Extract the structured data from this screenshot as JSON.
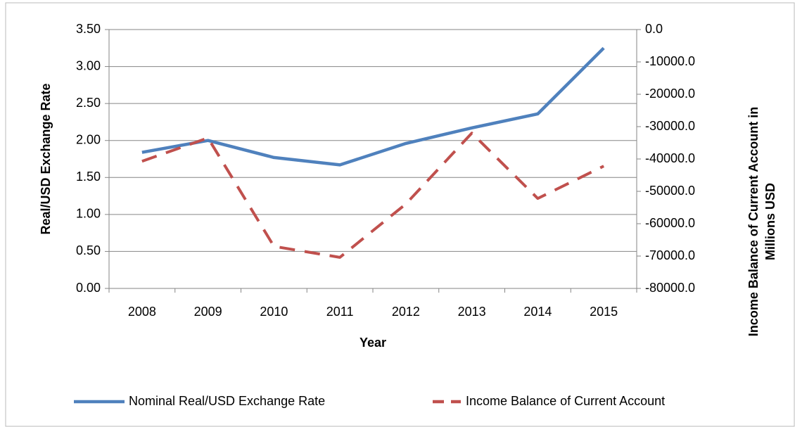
{
  "chart_data": {
    "type": "line",
    "x_label": "Year",
    "y_label": "Real/USD Exchange Rate",
    "y2_label": [
      "Income Balance of Current Account in",
      "Millions USD"
    ],
    "categories": [
      "2008",
      "2009",
      "2010",
      "2011",
      "2012",
      "2013",
      "2014",
      "2015"
    ],
    "series": [
      {
        "name": "Nominal Real/USD Exchange Rate",
        "color": "#4f81bd",
        "dash": false,
        "values": [
          1.84,
          2.0,
          1.77,
          1.67,
          1.96,
          2.17,
          2.36,
          3.25
        ]
      },
      {
        "name": "Income Balance of Current Account",
        "color": "#c0504d",
        "dash": true,
        "axis": "y2",
        "values": [
          -40700,
          -33500,
          -67000,
          -70400,
          -53900,
          -32000,
          -52200,
          -42200
        ]
      }
    ],
    "ylim": [
      0,
      3.5
    ],
    "yticks": [
      {
        "value": 0,
        "label": "0.00"
      },
      {
        "value": 0.5,
        "label": "0.50"
      },
      {
        "value": 1,
        "label": "1.00"
      },
      {
        "value": 1.5,
        "label": "1.50"
      },
      {
        "value": 2,
        "label": "2.00"
      },
      {
        "value": 2.5,
        "label": "2.50"
      },
      {
        "value": 3,
        "label": "3.00"
      },
      {
        "value": 3.5,
        "label": "3.50"
      }
    ],
    "y2lim": [
      -80000,
      0
    ],
    "y2ticks": [
      {
        "value": -80000,
        "label": "-80000.0"
      },
      {
        "value": -70000,
        "label": "-70000.0"
      },
      {
        "value": -60000,
        "label": "-60000.0"
      },
      {
        "value": -50000,
        "label": "-50000.0"
      },
      {
        "value": -40000,
        "label": "-40000.0"
      },
      {
        "value": -30000,
        "label": "-30000.0"
      },
      {
        "value": -20000,
        "label": "-20000.0"
      },
      {
        "value": -10000,
        "label": "-10000.0"
      },
      {
        "value": 0,
        "label": "0.0"
      }
    ],
    "grid": true,
    "legend": "bottom"
  }
}
